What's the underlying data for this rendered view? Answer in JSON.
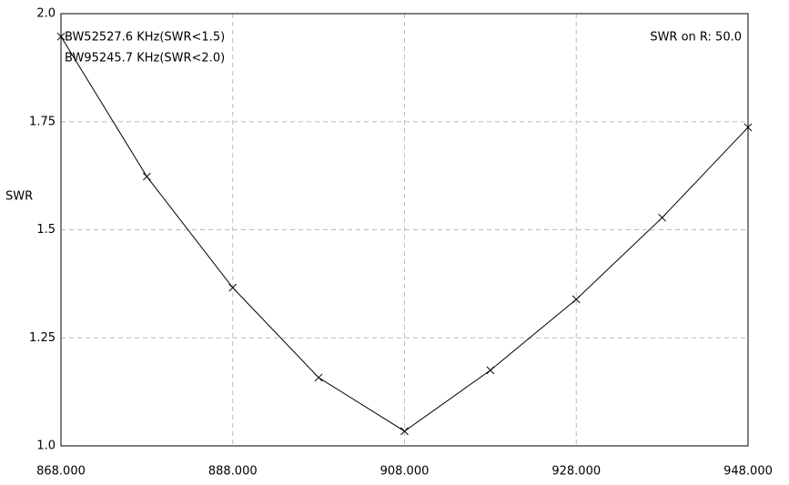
{
  "chart_data": {
    "type": "line",
    "y_label": "SWR",
    "annotations": [
      "BW52527.6 KHz(SWR<1.5)",
      "BW95245.7 KHz(SWR<2.0)",
      "SWR on R: 50.0"
    ],
    "x": [
      868,
      878,
      888,
      898,
      908,
      918,
      928,
      938,
      948
    ],
    "values": [
      1.947,
      1.623,
      1.366,
      1.158,
      1.034,
      1.175,
      1.339,
      1.528,
      1.737
    ],
    "color": "#000000",
    "xlim": [
      868,
      948
    ],
    "xticks": [
      {
        "value": 868,
        "label": "868.000"
      },
      {
        "value": 888,
        "label": "888.000"
      },
      {
        "value": 908,
        "label": "908.000"
      },
      {
        "value": 928,
        "label": "928.000"
      },
      {
        "value": 948,
        "label": "948.000"
      }
    ],
    "ylim": [
      1.0,
      2.0
    ],
    "yticks": [
      {
        "value": 1.0,
        "label": "1.0"
      },
      1.25,
      1.5,
      1.75,
      {
        "value": 2.0,
        "label": "2.0"
      }
    ],
    "grid": true
  }
}
